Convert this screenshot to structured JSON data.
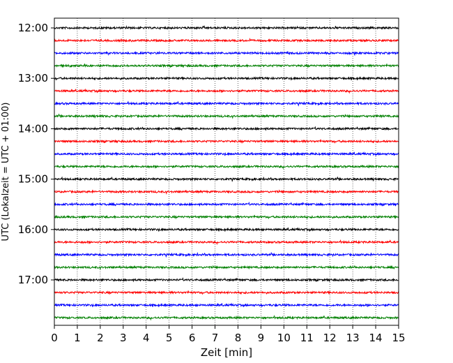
{
  "chart_data": {
    "type": "line",
    "title": "",
    "xlabel": "Zeit  [min]",
    "ylabel": "UTC (Lokalzeit = UTC + 01:00)",
    "xlim": [
      0,
      15
    ],
    "x_ticks": [
      "0",
      "1",
      "2",
      "3",
      "4",
      "5",
      "6",
      "7",
      "8",
      "9",
      "10",
      "11",
      "12",
      "13",
      "14",
      "15"
    ],
    "y_ticks": [
      "12:00",
      "13:00",
      "14:00",
      "15:00",
      "16:00",
      "17:00"
    ],
    "vertical_grid": "dotted",
    "trace_interval_minutes": 15,
    "colors": [
      "#000000",
      "#ff0000",
      "#0000ff",
      "#008000"
    ],
    "traces": [
      {
        "start": "12:00",
        "color": "#000000"
      },
      {
        "start": "12:15",
        "color": "#ff0000"
      },
      {
        "start": "12:30",
        "color": "#0000ff"
      },
      {
        "start": "12:45",
        "color": "#008000"
      },
      {
        "start": "13:00",
        "color": "#000000"
      },
      {
        "start": "13:15",
        "color": "#ff0000"
      },
      {
        "start": "13:30",
        "color": "#0000ff"
      },
      {
        "start": "13:45",
        "color": "#008000"
      },
      {
        "start": "14:00",
        "color": "#000000"
      },
      {
        "start": "14:15",
        "color": "#ff0000"
      },
      {
        "start": "14:30",
        "color": "#0000ff"
      },
      {
        "start": "14:45",
        "color": "#008000"
      },
      {
        "start": "15:00",
        "color": "#000000"
      },
      {
        "start": "15:15",
        "color": "#ff0000"
      },
      {
        "start": "15:30",
        "color": "#0000ff"
      },
      {
        "start": "15:45",
        "color": "#008000"
      },
      {
        "start": "16:00",
        "color": "#000000"
      },
      {
        "start": "16:15",
        "color": "#ff0000"
      },
      {
        "start": "16:30",
        "color": "#0000ff"
      },
      {
        "start": "16:45",
        "color": "#008000"
      },
      {
        "start": "17:00",
        "color": "#000000"
      },
      {
        "start": "17:15",
        "color": "#ff0000"
      },
      {
        "start": "17:30",
        "color": "#0000ff"
      },
      {
        "start": "17:45",
        "color": "#008000"
      }
    ]
  }
}
